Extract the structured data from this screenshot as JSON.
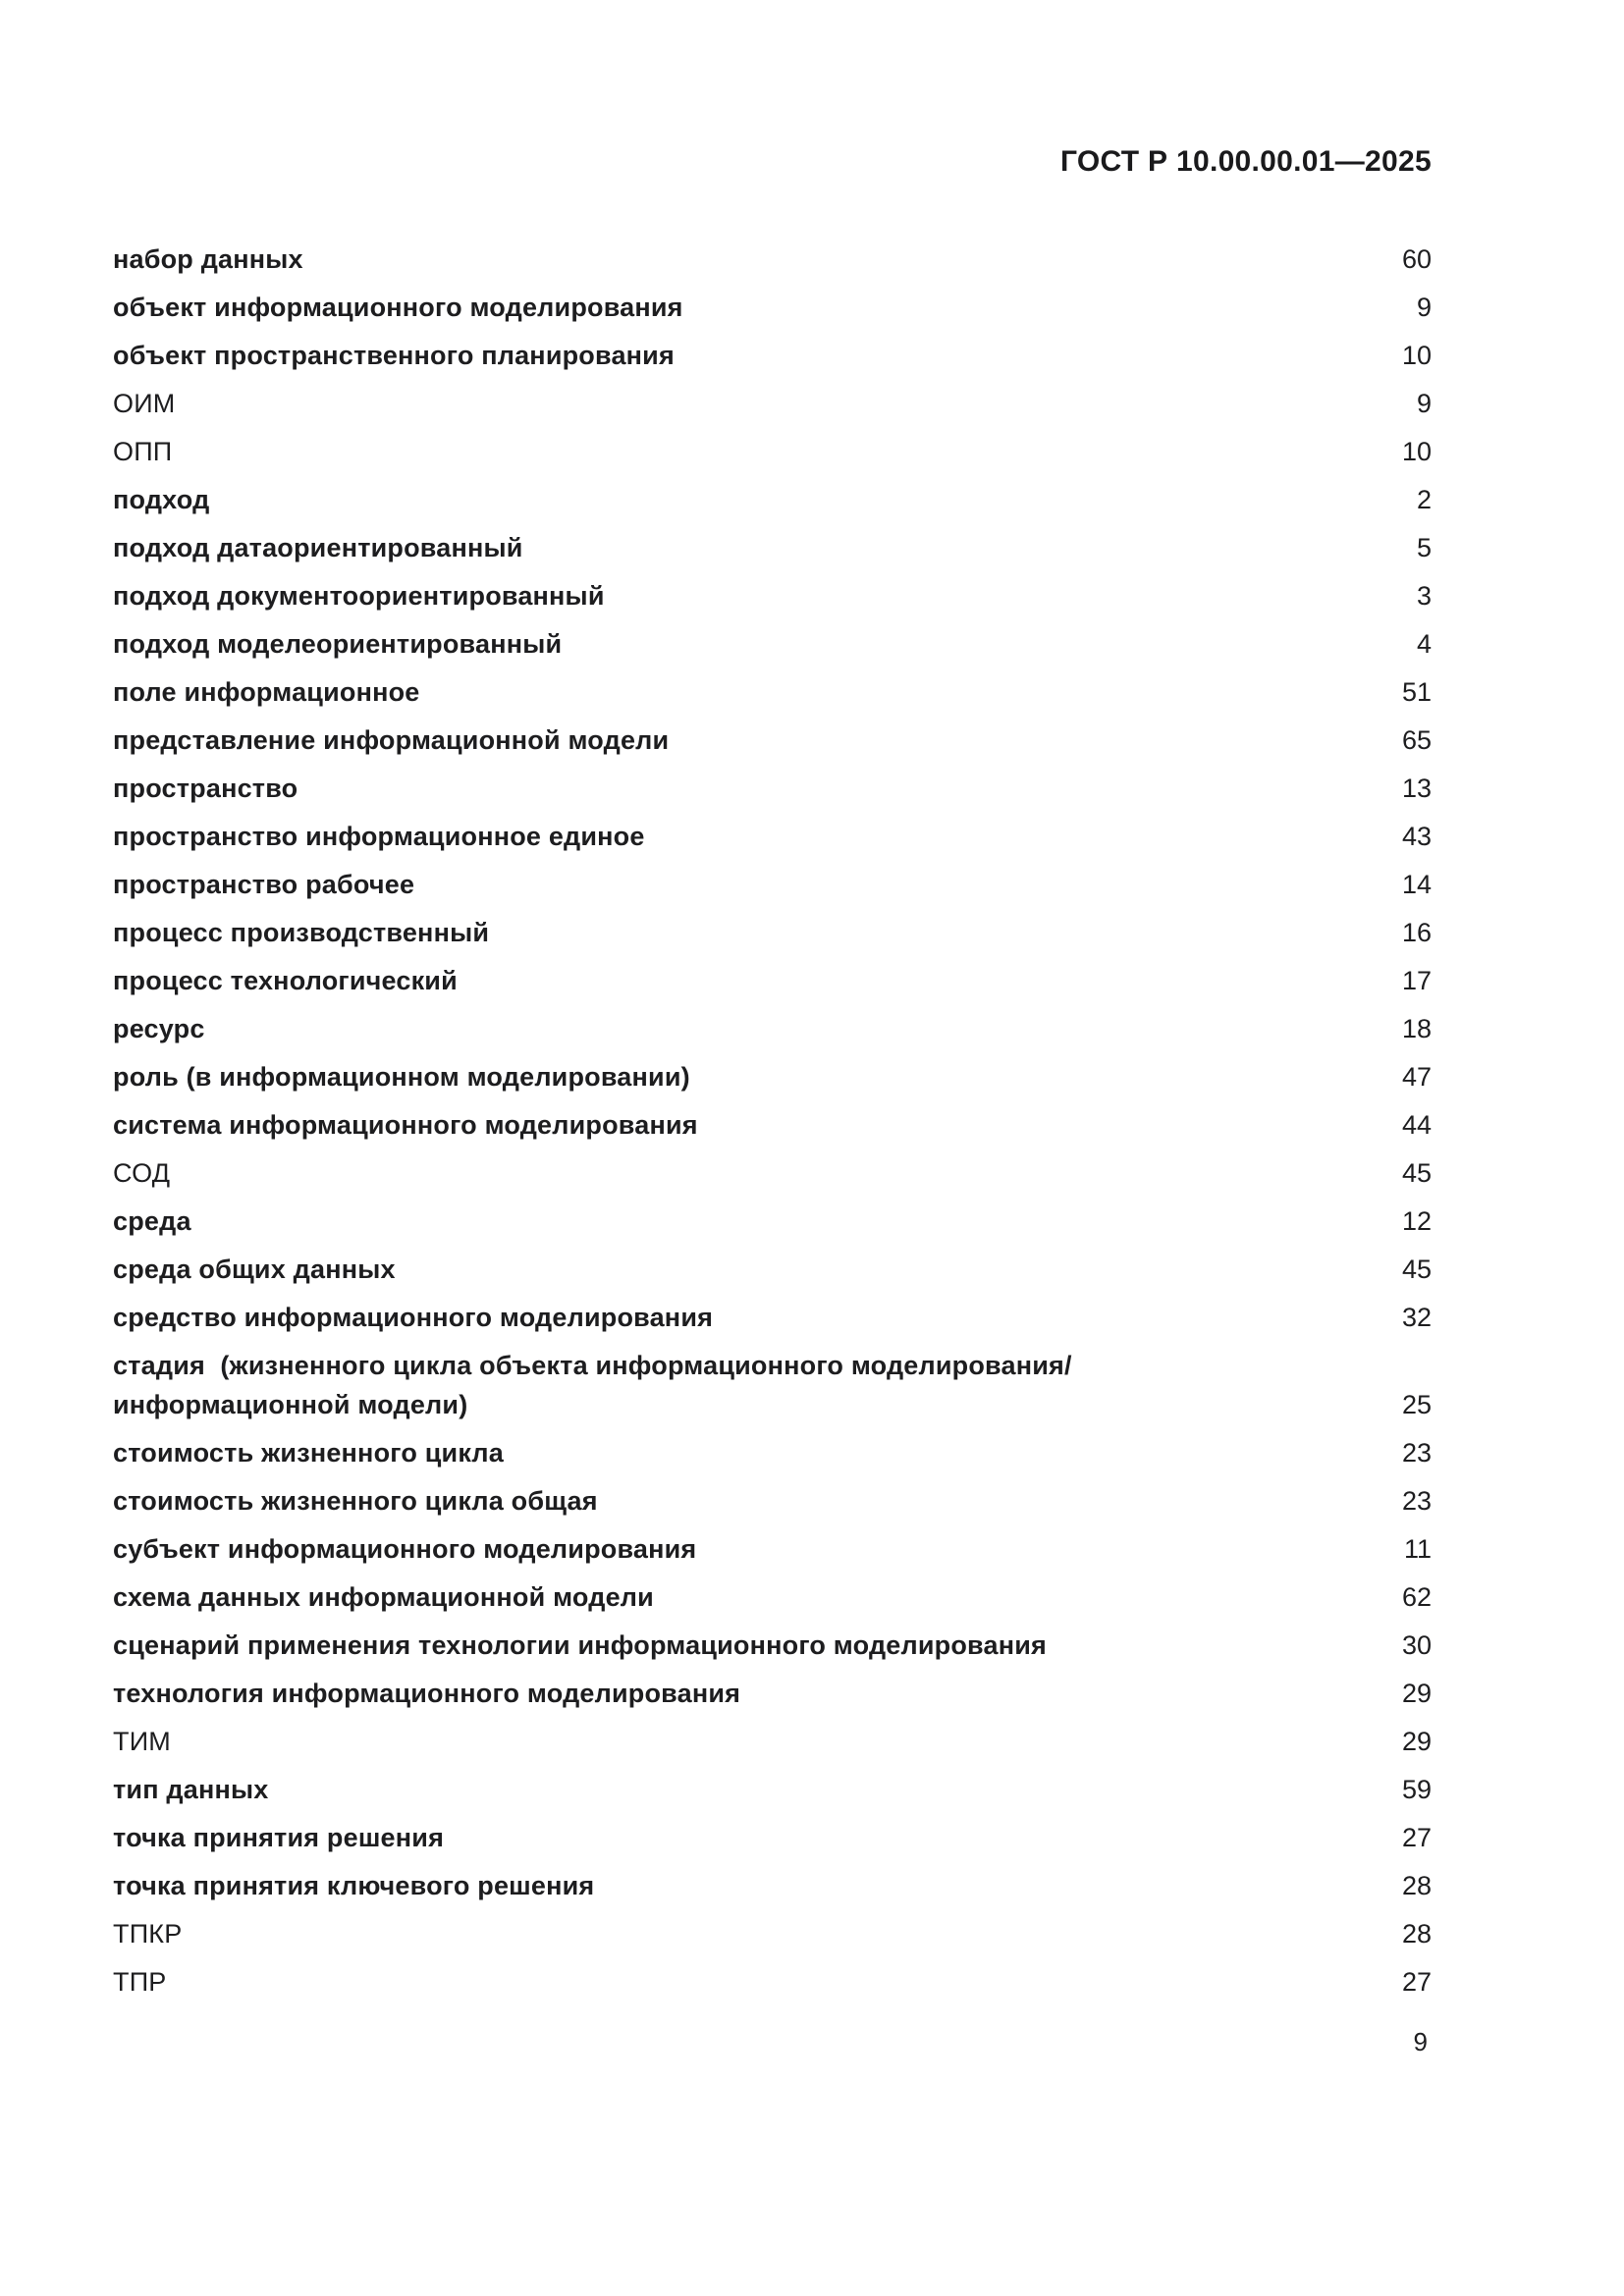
{
  "header": {
    "title": "ГОСТ Р 10.00.00.01—2025"
  },
  "index": {
    "entries": [
      {
        "term": "набор данных",
        "page": "60",
        "style": "bold"
      },
      {
        "term": "объект информационного моделирования",
        "page": "9",
        "style": "bold"
      },
      {
        "term": "объект пространственного планирования",
        "page": "10",
        "style": "bold"
      },
      {
        "term": "ОИМ",
        "page": "9",
        "style": "regular"
      },
      {
        "term": "ОПП",
        "page": "10",
        "style": "regular"
      },
      {
        "term": "подход",
        "page": "2",
        "style": "bold"
      },
      {
        "term": "подход датаориентированный",
        "page": "5",
        "style": "bold"
      },
      {
        "term": "подход документоориентированный",
        "page": "3",
        "style": "bold"
      },
      {
        "term": "подход моделеориентированный",
        "page": "4",
        "style": "bold"
      },
      {
        "term": "поле информационное",
        "page": "51",
        "style": "bold"
      },
      {
        "term": "представление информационной модели",
        "page": "65",
        "style": "bold"
      },
      {
        "term": "пространство",
        "page": "13",
        "style": "bold"
      },
      {
        "term": "пространство информационное единое",
        "page": "43",
        "style": "bold"
      },
      {
        "term": "пространство рабочее",
        "page": "14",
        "style": "bold"
      },
      {
        "term": "процесс производственный",
        "page": "16",
        "style": "bold"
      },
      {
        "term": "процесс технологический",
        "page": "17",
        "style": "bold"
      },
      {
        "term": "ресурс",
        "page": "18",
        "style": "bold"
      },
      {
        "term": "роль (в информационном моделировании)",
        "page": "47",
        "style": "bold"
      },
      {
        "term": "система информационного моделирования",
        "page": "44",
        "style": "bold"
      },
      {
        "term": "СОД",
        "page": "45",
        "style": "regular"
      },
      {
        "term": "среда",
        "page": "12",
        "style": "bold"
      },
      {
        "term": "среда общих данных",
        "page": "45",
        "style": "bold"
      },
      {
        "term": "средство информационного моделирования",
        "page": "32",
        "style": "bold"
      },
      {
        "term": "стадия  (жизненного цикла объекта информационного моделирования/информационной модели)",
        "page": "25",
        "style": "bold"
      },
      {
        "term": "стоимость жизненного цикла",
        "page": "23",
        "style": "bold"
      },
      {
        "term": "стоимость жизненного цикла общая",
        "page": "23",
        "style": "bold"
      },
      {
        "term": "субъект информационного моделирования",
        "page": "11",
        "style": "bold"
      },
      {
        "term": "схема данных информационной модели",
        "page": "62",
        "style": "bold"
      },
      {
        "term": "сценарий применения технологии информационного моделирования",
        "page": "30",
        "style": "bold"
      },
      {
        "term": "технология информационного моделирования",
        "page": "29",
        "style": "bold"
      },
      {
        "term": "ТИМ",
        "page": "29",
        "style": "regular"
      },
      {
        "term": "тип данных",
        "page": "59",
        "style": "bold"
      },
      {
        "term": "точка принятия решения",
        "page": "27",
        "style": "bold"
      },
      {
        "term": "точка принятия ключевого решения",
        "page": "28",
        "style": "bold"
      },
      {
        "term": "ТПКР",
        "page": "28",
        "style": "regular"
      },
      {
        "term": "ТПР",
        "page": "27",
        "style": "regular"
      }
    ]
  },
  "footer": {
    "page_number": "9"
  }
}
